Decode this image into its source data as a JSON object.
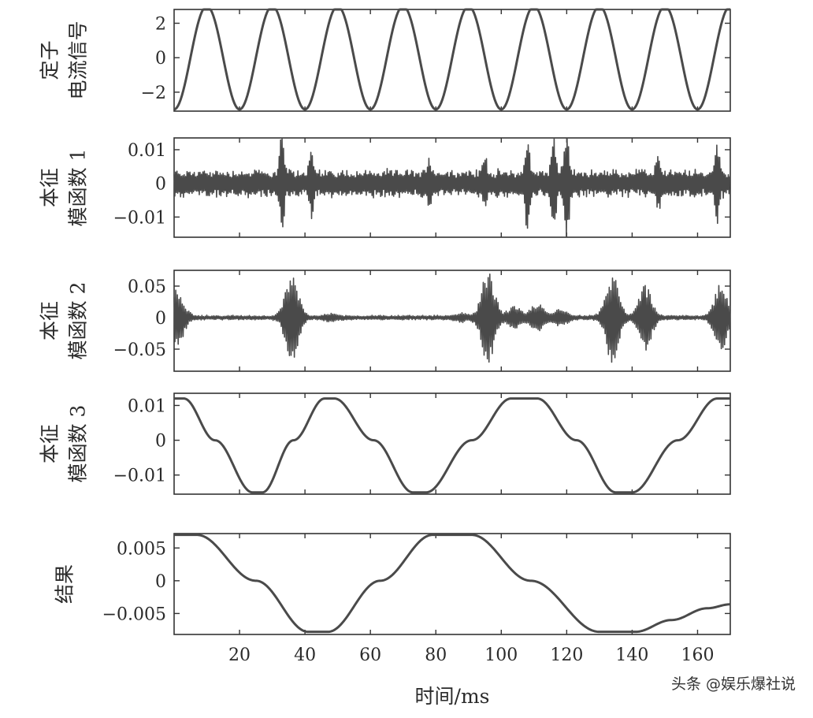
{
  "xlabel": "时间/ms",
  "watermark": "头条 @娱乐爆社说",
  "chart_data": {
    "type": "line",
    "x_axis": {
      "label": "时间/ms",
      "range": [
        0,
        170
      ],
      "ticks": [
        20,
        40,
        60,
        80,
        100,
        120,
        140,
        160
      ]
    },
    "panels": [
      {
        "ylabel_lines": [
          "定子",
          "电流信号"
        ],
        "ylim": [
          -3.1,
          2.8
        ],
        "yticks": [
          2,
          0,
          -2
        ],
        "ytick_labels": [
          "2",
          "0",
          "−2"
        ],
        "signal": "sine",
        "amplitude": 3.0,
        "period_ms": 20,
        "phase_peak_ms": 10
      },
      {
        "ylabel_lines": [
          "本征",
          "模函数 1"
        ],
        "ylim": [
          -0.016,
          0.0135
        ],
        "yticks": [
          0.01,
          0,
          -0.01
        ],
        "ytick_labels": [
          "0.01",
          "0",
          "−0.01"
        ],
        "signal": "noise",
        "base_amplitude": 0.0045,
        "bursts": [
          {
            "t": 33,
            "amp": 0.012
          },
          {
            "t": 42,
            "amp": 0.008
          },
          {
            "t": 78,
            "amp": 0.005
          },
          {
            "t": 95,
            "amp": 0.005
          },
          {
            "t": 108,
            "amp": 0.011
          },
          {
            "t": 116,
            "amp": 0.013
          },
          {
            "t": 120,
            "amp": 0.015
          },
          {
            "t": 148,
            "amp": 0.006
          },
          {
            "t": 166,
            "amp": 0.01
          }
        ]
      },
      {
        "ylabel_lines": [
          "本征",
          "模函数 2"
        ],
        "ylim": [
          -0.085,
          0.075
        ],
        "yticks": [
          0.05,
          0,
          -0.05
        ],
        "ytick_labels": [
          "0.05",
          "0",
          "−0.05"
        ],
        "signal": "bursts",
        "base_amplitude": 0.004,
        "bursts": [
          {
            "t": 1,
            "amp": 0.045
          },
          {
            "t": 36,
            "amp": 0.07
          },
          {
            "t": 48,
            "amp": 0.004
          },
          {
            "t": 88,
            "amp": 0.005
          },
          {
            "t": 96,
            "amp": 0.075
          },
          {
            "t": 104,
            "amp": 0.015
          },
          {
            "t": 111,
            "amp": 0.02
          },
          {
            "t": 118,
            "amp": 0.012
          },
          {
            "t": 134,
            "amp": 0.07
          },
          {
            "t": 144,
            "amp": 0.05
          },
          {
            "t": 167,
            "amp": 0.05
          }
        ]
      },
      {
        "ylabel_lines": [
          "本征",
          "模函数 3"
        ],
        "ylim": [
          -0.0155,
          0.0135
        ],
        "yticks": [
          0.01,
          0,
          -0.01
        ],
        "ytick_labels": [
          "0.01",
          "0",
          "−0.01"
        ],
        "signal": "wave",
        "points": [
          [
            0,
            0.012
          ],
          [
            3,
            0.012
          ],
          [
            12.5,
            0
          ],
          [
            24,
            -0.015
          ],
          [
            27,
            -0.015
          ],
          [
            36.5,
            0
          ],
          [
            46,
            0.012
          ],
          [
            49,
            0.012
          ],
          [
            61,
            0
          ],
          [
            73,
            -0.015
          ],
          [
            77,
            -0.015
          ],
          [
            91,
            0
          ],
          [
            103,
            0.012
          ],
          [
            111,
            0.012
          ],
          [
            123,
            0
          ],
          [
            135,
            -0.015
          ],
          [
            140,
            -0.015
          ],
          [
            154,
            0
          ],
          [
            166,
            0.012
          ],
          [
            170,
            0.012
          ]
        ]
      },
      {
        "ylabel_lines": [
          "结果"
        ],
        "ylim": [
          -0.0082,
          0.0072
        ],
        "yticks": [
          0.005,
          0,
          -0.005
        ],
        "ytick_labels": [
          "0.005",
          "0",
          "−0.005"
        ],
        "signal": "wave",
        "points": [
          [
            0,
            0.007
          ],
          [
            7,
            0.007
          ],
          [
            25,
            0
          ],
          [
            41,
            -0.0078
          ],
          [
            47,
            -0.0078
          ],
          [
            63,
            0
          ],
          [
            79,
            0.007
          ],
          [
            91,
            0.007
          ],
          [
            109,
            0
          ],
          [
            130,
            -0.0078
          ],
          [
            141,
            -0.0078
          ],
          [
            152,
            -0.006
          ],
          [
            163,
            -0.0042
          ],
          [
            170,
            -0.0036
          ]
        ]
      }
    ]
  }
}
